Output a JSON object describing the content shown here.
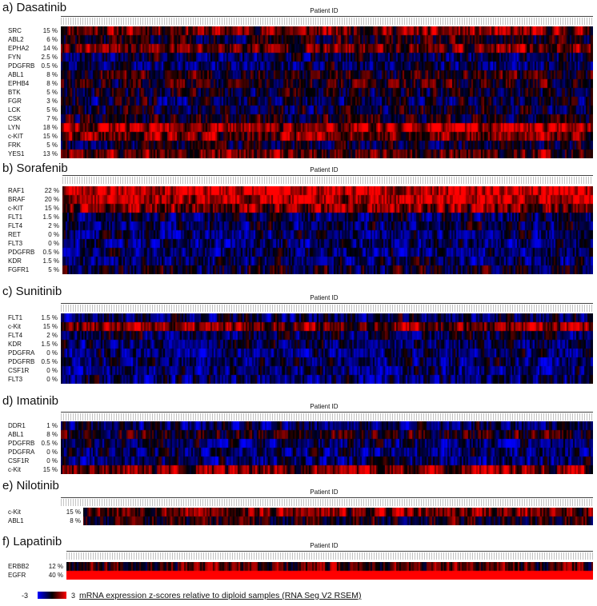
{
  "chart_data": [
    {
      "type": "heatmap",
      "title": "a) Dasatinib",
      "xlabel": "Patient ID",
      "rows": [
        {
          "gene": "SRC",
          "pct": "15 %"
        },
        {
          "gene": "ABL2",
          "pct": "6 %"
        },
        {
          "gene": "EPHA2",
          "pct": "14 %"
        },
        {
          "gene": "FYN",
          "pct": "2.5 %"
        },
        {
          "gene": "PDGFRB",
          "pct": "0.5 %"
        },
        {
          "gene": "ABL1",
          "pct": "8 %"
        },
        {
          "gene": "EPHB4",
          "pct": "8 %"
        },
        {
          "gene": "BTK",
          "pct": "5 %"
        },
        {
          "gene": "FGR",
          "pct": "3 %"
        },
        {
          "gene": "LCK",
          "pct": "5 %"
        },
        {
          "gene": "CSK",
          "pct": "7 %"
        },
        {
          "gene": "LYN",
          "pct": "18 %"
        },
        {
          "gene": "c-KIT",
          "pct": "15 %"
        },
        {
          "gene": "FRK",
          "pct": "5 %"
        },
        {
          "gene": "YES1",
          "pct": "13 %"
        }
      ]
    },
    {
      "type": "heatmap",
      "title": "b) Sorafenib",
      "xlabel": "Patient ID",
      "rows": [
        {
          "gene": "RAF1",
          "pct": "22 %"
        },
        {
          "gene": "BRAF",
          "pct": "20 %"
        },
        {
          "gene": "c-KIT",
          "pct": "15 %"
        },
        {
          "gene": "FLT1",
          "pct": "1.5 %"
        },
        {
          "gene": "FLT4",
          "pct": "2 %"
        },
        {
          "gene": "RET",
          "pct": "0 %"
        },
        {
          "gene": "FLT3",
          "pct": "0 %"
        },
        {
          "gene": "PDGFRB",
          "pct": "0.5 %"
        },
        {
          "gene": "KDR",
          "pct": "1.5 %"
        },
        {
          "gene": "FGFR1",
          "pct": "5 %"
        }
      ]
    },
    {
      "type": "heatmap",
      "title": "c) Sunitinib",
      "xlabel": "Patient ID",
      "rows": [
        {
          "gene": "FLT1",
          "pct": "1.5 %"
        },
        {
          "gene": "c-Kit",
          "pct": "15 %"
        },
        {
          "gene": "FLT4",
          "pct": "2 %"
        },
        {
          "gene": "KDR",
          "pct": "1.5 %"
        },
        {
          "gene": "PDGFRA",
          "pct": "0 %"
        },
        {
          "gene": "PDGFRB",
          "pct": "0.5 %"
        },
        {
          "gene": "CSF1R",
          "pct": "0 %"
        },
        {
          "gene": "FLT3",
          "pct": "0 %"
        }
      ]
    },
    {
      "type": "heatmap",
      "title": "d) Imatinib",
      "xlabel": "Patient ID",
      "rows": [
        {
          "gene": "DDR1",
          "pct": "1 %"
        },
        {
          "gene": "ABL1",
          "pct": "8 %"
        },
        {
          "gene": "PDGFRB",
          "pct": "0.5 %"
        },
        {
          "gene": "PDGFRA",
          "pct": "0 %"
        },
        {
          "gene": "CSF1R",
          "pct": "0 %"
        },
        {
          "gene": "c-Kit",
          "pct": "15 %"
        }
      ]
    },
    {
      "type": "heatmap",
      "title": "e) Nilotinib",
      "xlabel": "Patient ID",
      "rows": [
        {
          "gene": "c-Kit",
          "pct": "15 %"
        },
        {
          "gene": "ABL1",
          "pct": "8 %"
        }
      ]
    },
    {
      "type": "heatmap",
      "title": "f) Lapatinib",
      "xlabel": "Patient ID",
      "rows": [
        {
          "gene": "ERBB2",
          "pct": "12 %"
        },
        {
          "gene": "EGFR",
          "pct": "40 %"
        }
      ]
    }
  ],
  "legend": {
    "min": "-3",
    "max": "3",
    "description": "mRNA expression z-scores relative to diploid samples (RNA Seg V2 RSEM)",
    "colors": {
      "low": "#0000ff",
      "mid": "#000000",
      "high": "#ff0000"
    }
  }
}
